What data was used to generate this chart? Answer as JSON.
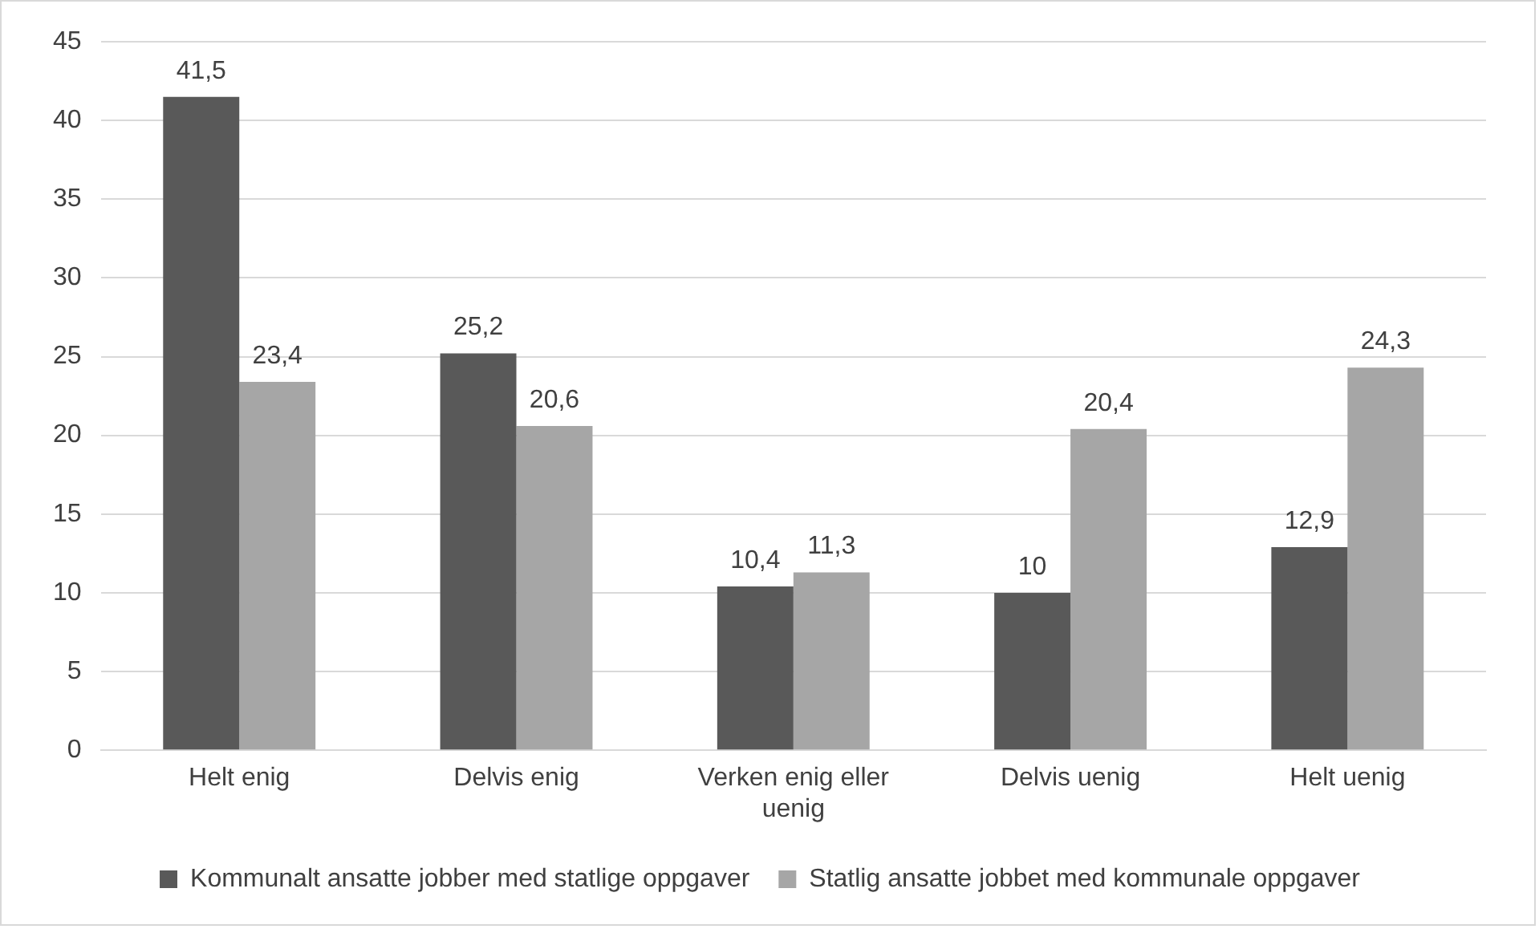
{
  "chart_data": {
    "type": "bar",
    "categories": [
      "Helt enig",
      "Delvis enig",
      "Verken enig eller uenig",
      "Delvis uenig",
      "Helt uenig"
    ],
    "series": [
      {
        "name": "Kommunalt ansatte jobber med statlige oppgaver",
        "color": "#595959",
        "values": [
          41.5,
          25.2,
          10.4,
          10,
          12.9
        ],
        "value_labels": [
          "41,5",
          "25,2",
          "10,4",
          "10",
          "12,9"
        ]
      },
      {
        "name": "Statlig ansatte jobbet med kommunale oppgaver",
        "color": "#a6a6a6",
        "values": [
          23.4,
          20.6,
          11.3,
          20.4,
          24.3
        ],
        "value_labels": [
          "23,4",
          "20,6",
          "11,3",
          "20,4",
          "24,3"
        ]
      }
    ],
    "ylim": [
      0,
      45
    ],
    "yticks": [
      0,
      5,
      10,
      15,
      20,
      25,
      30,
      35,
      40,
      45
    ],
    "grid": "y",
    "legend": "bottom"
  }
}
